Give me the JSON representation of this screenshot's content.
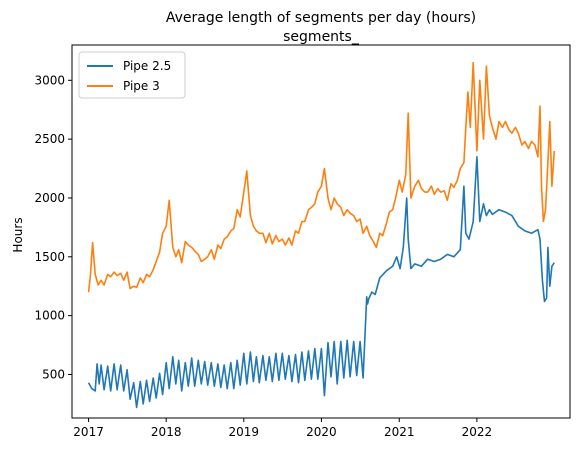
{
  "chart_data": {
    "type": "line",
    "title": "Average length of segments per day (hours)",
    "subtitle": "segments_",
    "xlabel": "",
    "ylabel": "Hours",
    "xlim": [
      "2016-10-15",
      "2023-03-15"
    ],
    "ylim": [
      130,
      3300
    ],
    "x_ticks": [
      "2017",
      "2018",
      "2019",
      "2020",
      "2021",
      "2022"
    ],
    "y_ticks": [
      500,
      1000,
      1500,
      2000,
      2500,
      3000
    ],
    "legend_position": "top-left",
    "grid": false,
    "series": [
      {
        "name": "Pipe 2.5",
        "color": "#1f77b4",
        "x": [
          "2017-01-01",
          "2017-01-16",
          "2017-02-01",
          "2017-02-10",
          "2017-02-20",
          "2017-03-01",
          "2017-03-15",
          "2017-04-01",
          "2017-04-15",
          "2017-05-01",
          "2017-05-15",
          "2017-06-01",
          "2017-06-15",
          "2017-07-01",
          "2017-07-15",
          "2017-08-01",
          "2017-08-15",
          "2017-09-01",
          "2017-09-15",
          "2017-10-01",
          "2017-10-15",
          "2017-11-01",
          "2017-11-15",
          "2017-12-01",
          "2017-12-15",
          "2018-01-01",
          "2018-01-15",
          "2018-02-01",
          "2018-02-15",
          "2018-03-01",
          "2018-03-15",
          "2018-04-01",
          "2018-04-15",
          "2018-05-01",
          "2018-05-15",
          "2018-06-01",
          "2018-06-15",
          "2018-07-01",
          "2018-07-15",
          "2018-08-01",
          "2018-08-15",
          "2018-09-01",
          "2018-09-15",
          "2018-10-01",
          "2018-10-15",
          "2018-11-01",
          "2018-11-15",
          "2018-12-01",
          "2018-12-15",
          "2019-01-01",
          "2019-01-15",
          "2019-02-01",
          "2019-02-15",
          "2019-03-01",
          "2019-03-15",
          "2019-04-01",
          "2019-04-15",
          "2019-05-01",
          "2019-05-15",
          "2019-06-01",
          "2019-06-15",
          "2019-07-01",
          "2019-07-15",
          "2019-08-01",
          "2019-08-15",
          "2019-09-01",
          "2019-09-15",
          "2019-10-01",
          "2019-10-15",
          "2019-11-01",
          "2019-11-15",
          "2019-12-01",
          "2019-12-15",
          "2020-01-01",
          "2020-01-15",
          "2020-02-01",
          "2020-02-15",
          "2020-03-01",
          "2020-03-15",
          "2020-04-01",
          "2020-04-15",
          "2020-05-01",
          "2020-05-15",
          "2020-06-01",
          "2020-06-15",
          "2020-07-01",
          "2020-07-15",
          "2020-08-01",
          "2020-08-05",
          "2020-08-10",
          "2020-08-25",
          "2020-09-10",
          "2020-10-01",
          "2020-11-01",
          "2020-12-01",
          "2020-12-20",
          "2021-01-05",
          "2021-01-20",
          "2021-02-05",
          "2021-02-12",
          "2021-02-25",
          "2021-03-15",
          "2021-04-15",
          "2021-05-15",
          "2021-06-15",
          "2021-07-15",
          "2021-08-15",
          "2021-09-15",
          "2021-10-15",
          "2021-11-01",
          "2021-11-10",
          "2021-11-25",
          "2021-12-15",
          "2022-01-01",
          "2022-01-15",
          "2022-02-01",
          "2022-02-15",
          "2022-03-01",
          "2022-03-15",
          "2022-04-15",
          "2022-05-15",
          "2022-06-15",
          "2022-07-15",
          "2022-08-15",
          "2022-09-15",
          "2022-10-15",
          "2022-10-25",
          "2022-11-05",
          "2022-11-15",
          "2022-11-25",
          "2022-12-01",
          "2022-12-10",
          "2022-12-20",
          "2022-12-31"
        ],
        "y": [
          430,
          380,
          360,
          590,
          420,
          580,
          370,
          570,
          360,
          590,
          370,
          580,
          360,
          540,
          290,
          430,
          220,
          440,
          250,
          450,
          270,
          470,
          300,
          510,
          330,
          600,
          380,
          650,
          420,
          620,
          360,
          600,
          400,
          640,
          400,
          620,
          420,
          610,
          410,
          600,
          400,
          590,
          390,
          580,
          380,
          600,
          380,
          620,
          410,
          680,
          420,
          690,
          440,
          650,
          430,
          660,
          450,
          650,
          440,
          680,
          450,
          680,
          460,
          660,
          440,
          670,
          430,
          690,
          450,
          700,
          460,
          720,
          460,
          720,
          320,
          770,
          480,
          780,
          420,
          780,
          470,
          790,
          480,
          780,
          490,
          780,
          470,
          1160,
          1100,
          1140,
          1200,
          1180,
          1320,
          1380,
          1420,
          1500,
          1400,
          1580,
          2000,
          1650,
          1400,
          1440,
          1420,
          1480,
          1460,
          1480,
          1520,
          1500,
          1560,
          2100,
          1700,
          1650,
          1800,
          2350,
          1800,
          1950,
          1850,
          1900,
          1860,
          1900,
          1880,
          1850,
          1760,
          1720,
          1700,
          1730,
          1650,
          1300,
          1120,
          1150,
          1580,
          1250,
          1420,
          1450
        ]
      },
      {
        "name": "Pipe 3",
        "color": "#ff7f0e",
        "x": [
          "2017-01-01",
          "2017-01-10",
          "2017-01-20",
          "2017-02-01",
          "2017-02-15",
          "2017-03-01",
          "2017-03-15",
          "2017-04-01",
          "2017-04-15",
          "2017-05-01",
          "2017-05-15",
          "2017-06-01",
          "2017-06-15",
          "2017-07-01",
          "2017-07-15",
          "2017-08-01",
          "2017-08-15",
          "2017-09-01",
          "2017-09-15",
          "2017-10-01",
          "2017-10-15",
          "2017-11-01",
          "2017-11-15",
          "2017-12-01",
          "2017-12-15",
          "2018-01-01",
          "2018-01-15",
          "2018-02-01",
          "2018-02-15",
          "2018-03-01",
          "2018-03-15",
          "2018-04-01",
          "2018-04-15",
          "2018-05-01",
          "2018-05-15",
          "2018-06-01",
          "2018-06-15",
          "2018-07-01",
          "2018-07-15",
          "2018-08-01",
          "2018-08-15",
          "2018-09-01",
          "2018-09-15",
          "2018-10-01",
          "2018-10-15",
          "2018-11-01",
          "2018-11-15",
          "2018-12-01",
          "2018-12-15",
          "2019-01-01",
          "2019-01-15",
          "2019-02-01",
          "2019-02-15",
          "2019-03-01",
          "2019-03-15",
          "2019-04-01",
          "2019-04-15",
          "2019-05-01",
          "2019-05-15",
          "2019-06-01",
          "2019-06-15",
          "2019-07-01",
          "2019-07-15",
          "2019-08-01",
          "2019-08-15",
          "2019-09-01",
          "2019-09-15",
          "2019-10-01",
          "2019-10-15",
          "2019-11-01",
          "2019-11-15",
          "2019-12-01",
          "2019-12-15",
          "2020-01-01",
          "2020-01-15",
          "2020-02-01",
          "2020-02-15",
          "2020-03-01",
          "2020-03-15",
          "2020-04-01",
          "2020-04-15",
          "2020-05-01",
          "2020-05-15",
          "2020-06-01",
          "2020-06-15",
          "2020-07-01",
          "2020-07-15",
          "2020-08-01",
          "2020-08-15",
          "2020-09-01",
          "2020-09-15",
          "2020-10-01",
          "2020-10-15",
          "2020-11-01",
          "2020-11-15",
          "2020-12-01",
          "2020-12-15",
          "2021-01-01",
          "2021-01-15",
          "2021-02-01",
          "2021-02-12",
          "2021-02-25",
          "2021-03-15",
          "2021-04-01",
          "2021-04-15",
          "2021-05-01",
          "2021-05-15",
          "2021-06-01",
          "2021-06-15",
          "2021-07-01",
          "2021-07-15",
          "2021-08-01",
          "2021-08-15",
          "2021-09-01",
          "2021-09-15",
          "2021-10-01",
          "2021-10-15",
          "2021-11-01",
          "2021-11-10",
          "2021-11-20",
          "2021-12-01",
          "2021-12-15",
          "2022-01-01",
          "2022-01-15",
          "2022-02-01",
          "2022-02-15",
          "2022-03-01",
          "2022-03-15",
          "2022-04-01",
          "2022-04-15",
          "2022-05-01",
          "2022-05-15",
          "2022-06-01",
          "2022-06-15",
          "2022-07-01",
          "2022-07-15",
          "2022-08-01",
          "2022-08-15",
          "2022-09-01",
          "2022-09-15",
          "2022-10-01",
          "2022-10-15",
          "2022-10-25",
          "2022-11-01",
          "2022-11-10",
          "2022-11-20",
          "2022-12-01",
          "2022-12-10",
          "2022-12-20",
          "2022-12-31"
        ],
        "y": [
          1200,
          1350,
          1620,
          1350,
          1260,
          1300,
          1260,
          1350,
          1330,
          1370,
          1340,
          1360,
          1300,
          1370,
          1230,
          1250,
          1240,
          1320,
          1280,
          1350,
          1330,
          1390,
          1460,
          1540,
          1700,
          1760,
          1980,
          1580,
          1500,
          1560,
          1450,
          1630,
          1600,
          1580,
          1550,
          1520,
          1460,
          1480,
          1500,
          1560,
          1480,
          1600,
          1570,
          1650,
          1670,
          1720,
          1740,
          1900,
          1840,
          2050,
          2230,
          1850,
          1760,
          1720,
          1700,
          1700,
          1620,
          1700,
          1610,
          1680,
          1630,
          1650,
          1600,
          1660,
          1600,
          1720,
          1700,
          1800,
          1800,
          1900,
          1920,
          1950,
          2050,
          2100,
          2250,
          2000,
          1900,
          2000,
          1950,
          1920,
          1850,
          1900,
          1870,
          1850,
          1800,
          1820,
          1700,
          1760,
          1680,
          1630,
          1580,
          1700,
          1680,
          1780,
          1880,
          1900,
          2000,
          2150,
          2050,
          2200,
          2720,
          2000,
          2100,
          2150,
          2080,
          2050,
          2050,
          2100,
          2030,
          2080,
          2050,
          2060,
          1980,
          2120,
          2090,
          2150,
          2250,
          2300,
          2600,
          2900,
          2600,
          3150,
          2400,
          3000,
          2500,
          3120,
          2700,
          2600,
          2500,
          2650,
          2600,
          2650,
          2580,
          2550,
          2600,
          2550,
          2450,
          2480,
          2420,
          2480,
          2450,
          2350,
          2780,
          2100,
          1800,
          1900,
          2300,
          2650,
          2100,
          2400
        ]
      }
    ]
  }
}
